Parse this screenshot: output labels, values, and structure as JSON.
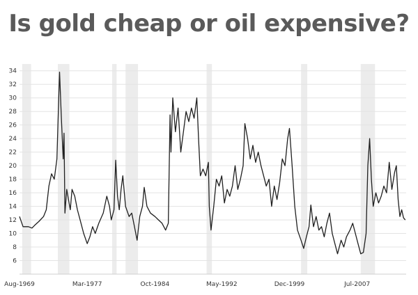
{
  "slide": {
    "title": "Is gold cheap or oil expensive?"
  },
  "chart_data": {
    "type": "line",
    "title": "Is gold cheap or oil expensive?",
    "xlabel": "",
    "ylabel": "",
    "xlim": [
      1969.6,
      2013.0
    ],
    "ylim": [
      4,
      35
    ],
    "yticks": [
      6,
      8,
      10,
      12,
      14,
      16,
      18,
      20,
      22,
      24,
      26,
      28,
      30,
      32,
      34
    ],
    "xticks": [
      {
        "label": "Aug-1969",
        "year": 1969.6
      },
      {
        "label": "Mar-1977",
        "year": 1977.2
      },
      {
        "label": "Oct-1984",
        "year": 1984.8
      },
      {
        "label": "May-1992",
        "year": 1992.3
      },
      {
        "label": "Dec-1999",
        "year": 1999.9
      },
      {
        "label": "Jul-2007",
        "year": 2007.5
      }
    ],
    "grid": true,
    "shaded_periods": [
      [
        1969.9,
        1970.9
      ],
      [
        1973.9,
        1975.2
      ],
      [
        1980.0,
        1980.5
      ],
      [
        1981.5,
        1982.9
      ],
      [
        1990.6,
        1991.2
      ],
      [
        2001.2,
        2001.9
      ],
      [
        2007.9,
        2009.5
      ]
    ],
    "series": [
      {
        "values": [
          [
            1969.6,
            12.5
          ],
          [
            1970.0,
            11.0
          ],
          [
            1970.6,
            11.0
          ],
          [
            1971.0,
            10.8
          ],
          [
            1971.3,
            11.2
          ],
          [
            1971.8,
            11.8
          ],
          [
            1972.3,
            12.5
          ],
          [
            1972.6,
            13.5
          ],
          [
            1972.9,
            17.0
          ],
          [
            1973.2,
            18.8
          ],
          [
            1973.5,
            18.0
          ],
          [
            1973.8,
            21.0
          ],
          [
            1974.0,
            30.0
          ],
          [
            1974.1,
            33.8
          ],
          [
            1974.3,
            27.0
          ],
          [
            1974.5,
            21.0
          ],
          [
            1974.6,
            24.8
          ],
          [
            1974.7,
            13.0
          ],
          [
            1974.9,
            16.5
          ],
          [
            1975.1,
            15.0
          ],
          [
            1975.3,
            13.5
          ],
          [
            1975.5,
            16.5
          ],
          [
            1975.8,
            15.5
          ],
          [
            1976.1,
            13.5
          ],
          [
            1976.4,
            12.0
          ],
          [
            1976.8,
            10.0
          ],
          [
            1977.2,
            8.5
          ],
          [
            1977.5,
            9.5
          ],
          [
            1977.8,
            11.0
          ],
          [
            1978.1,
            10.0
          ],
          [
            1978.5,
            11.5
          ],
          [
            1979.0,
            13.0
          ],
          [
            1979.4,
            15.5
          ],
          [
            1979.7,
            14.0
          ],
          [
            1979.9,
            12.0
          ],
          [
            1980.2,
            13.5
          ],
          [
            1980.4,
            20.8
          ],
          [
            1980.6,
            15.5
          ],
          [
            1980.8,
            13.5
          ],
          [
            1981.0,
            16.5
          ],
          [
            1981.2,
            18.5
          ],
          [
            1981.5,
            14.0
          ],
          [
            1981.9,
            12.5
          ],
          [
            1982.2,
            13.0
          ],
          [
            1982.5,
            11.0
          ],
          [
            1982.8,
            9.0
          ],
          [
            1983.1,
            12.5
          ],
          [
            1983.4,
            14.0
          ],
          [
            1983.6,
            16.8
          ],
          [
            1983.9,
            14.0
          ],
          [
            1984.3,
            13.0
          ],
          [
            1984.8,
            12.5
          ],
          [
            1985.2,
            12.0
          ],
          [
            1985.6,
            11.5
          ],
          [
            1986.0,
            10.5
          ],
          [
            1986.3,
            11.5
          ],
          [
            1986.5,
            27.5
          ],
          [
            1986.6,
            22.0
          ],
          [
            1986.8,
            30.0
          ],
          [
            1987.1,
            25.0
          ],
          [
            1987.4,
            28.5
          ],
          [
            1987.7,
            22.0
          ],
          [
            1988.0,
            25.0
          ],
          [
            1988.3,
            28.0
          ],
          [
            1988.6,
            26.5
          ],
          [
            1988.9,
            28.5
          ],
          [
            1989.2,
            27.0
          ],
          [
            1989.5,
            30.0
          ],
          [
            1989.7,
            24.0
          ],
          [
            1989.9,
            18.5
          ],
          [
            1990.2,
            19.5
          ],
          [
            1990.5,
            18.5
          ],
          [
            1990.8,
            20.5
          ],
          [
            1990.9,
            14.0
          ],
          [
            1991.1,
            10.5
          ],
          [
            1991.4,
            14.0
          ],
          [
            1991.7,
            18.0
          ],
          [
            1992.0,
            17.0
          ],
          [
            1992.3,
            18.5
          ],
          [
            1992.6,
            14.5
          ],
          [
            1992.9,
            16.5
          ],
          [
            1993.2,
            15.5
          ],
          [
            1993.5,
            17.0
          ],
          [
            1993.8,
            20.0
          ],
          [
            1994.1,
            16.5
          ],
          [
            1994.4,
            18.0
          ],
          [
            1994.7,
            20.0
          ],
          [
            1994.9,
            26.2
          ],
          [
            1995.2,
            24.0
          ],
          [
            1995.5,
            21.0
          ],
          [
            1995.8,
            23.0
          ],
          [
            1996.1,
            20.5
          ],
          [
            1996.4,
            22.0
          ],
          [
            1996.7,
            20.0
          ],
          [
            1997.0,
            18.5
          ],
          [
            1997.3,
            17.0
          ],
          [
            1997.6,
            18.0
          ],
          [
            1997.9,
            14.0
          ],
          [
            1998.2,
            17.0
          ],
          [
            1998.5,
            15.0
          ],
          [
            1998.8,
            17.5
          ],
          [
            1999.1,
            21.0
          ],
          [
            1999.4,
            20.0
          ],
          [
            1999.7,
            24.0
          ],
          [
            1999.9,
            25.5
          ],
          [
            2000.2,
            20.0
          ],
          [
            2000.5,
            14.0
          ],
          [
            2000.8,
            10.5
          ],
          [
            2001.2,
            9.0
          ],
          [
            2001.5,
            7.8
          ],
          [
            2001.8,
            9.5
          ],
          [
            2002.1,
            11.0
          ],
          [
            2002.3,
            14.2
          ],
          [
            2002.6,
            11.0
          ],
          [
            2002.9,
            12.5
          ],
          [
            2003.2,
            10.5
          ],
          [
            2003.5,
            11.0
          ],
          [
            2003.8,
            9.5
          ],
          [
            2004.1,
            11.5
          ],
          [
            2004.4,
            13.0
          ],
          [
            2004.7,
            10.0
          ],
          [
            2005.0,
            8.5
          ],
          [
            2005.3,
            7.0
          ],
          [
            2005.7,
            9.0
          ],
          [
            2006.0,
            8.0
          ],
          [
            2006.3,
            9.5
          ],
          [
            2006.7,
            10.5
          ],
          [
            2007.0,
            11.5
          ],
          [
            2007.3,
            10.0
          ],
          [
            2007.6,
            8.5
          ],
          [
            2007.9,
            7.0
          ],
          [
            2008.2,
            7.2
          ],
          [
            2008.5,
            10.0
          ],
          [
            2008.7,
            20.0
          ],
          [
            2008.9,
            24.0
          ],
          [
            2009.1,
            18.0
          ],
          [
            2009.3,
            14.0
          ],
          [
            2009.6,
            16.0
          ],
          [
            2009.9,
            14.5
          ],
          [
            2010.2,
            15.5
          ],
          [
            2010.5,
            17.0
          ],
          [
            2010.8,
            16.0
          ],
          [
            2011.1,
            20.5
          ],
          [
            2011.4,
            16.5
          ],
          [
            2011.7,
            19.0
          ],
          [
            2011.9,
            20.0
          ],
          [
            2012.1,
            15.0
          ],
          [
            2012.3,
            12.5
          ],
          [
            2012.5,
            13.5
          ],
          [
            2012.7,
            12.3
          ],
          [
            2012.9,
            12.0
          ]
        ]
      }
    ]
  }
}
